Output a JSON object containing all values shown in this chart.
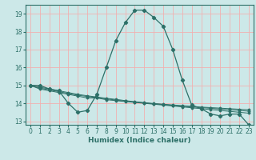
{
  "title": "",
  "xlabel": "Humidex (Indice chaleur)",
  "xlim": [
    -0.5,
    23.5
  ],
  "ylim": [
    12.8,
    19.5
  ],
  "yticks": [
    13,
    14,
    15,
    16,
    17,
    18,
    19
  ],
  "xticks": [
    0,
    1,
    2,
    3,
    4,
    5,
    6,
    7,
    8,
    9,
    10,
    11,
    12,
    13,
    14,
    15,
    16,
    17,
    18,
    19,
    20,
    21,
    22,
    23
  ],
  "bg_color": "#cce8e8",
  "grid_color": "#f0b0b0",
  "line_color": "#2d7068",
  "series": [
    [
      15.0,
      15.0,
      14.8,
      14.7,
      14.0,
      13.5,
      13.6,
      14.5,
      16.0,
      17.5,
      18.5,
      19.2,
      19.2,
      18.8,
      18.3,
      17.0,
      15.3,
      13.9,
      13.7,
      13.4,
      13.3,
      13.4,
      13.4,
      12.8
    ],
    [
      15.0,
      14.8,
      14.7,
      14.6,
      14.5,
      14.4,
      14.3,
      14.3,
      14.2,
      14.15,
      14.1,
      14.05,
      14.0,
      13.95,
      13.9,
      13.85,
      13.8,
      13.75,
      13.7,
      13.65,
      13.6,
      13.55,
      13.5,
      13.45
    ],
    [
      15.0,
      14.85,
      14.75,
      14.65,
      14.55,
      14.45,
      14.38,
      14.32,
      14.25,
      14.18,
      14.12,
      14.07,
      14.02,
      13.97,
      13.93,
      13.88,
      13.84,
      13.8,
      13.76,
      13.72,
      13.68,
      13.64,
      13.6,
      13.56
    ],
    [
      15.0,
      14.9,
      14.8,
      14.7,
      14.6,
      14.5,
      14.42,
      14.35,
      14.28,
      14.22,
      14.15,
      14.09,
      14.04,
      13.99,
      13.95,
      13.91,
      13.87,
      13.83,
      13.79,
      13.76,
      13.73,
      13.7,
      13.67,
      13.64
    ]
  ]
}
